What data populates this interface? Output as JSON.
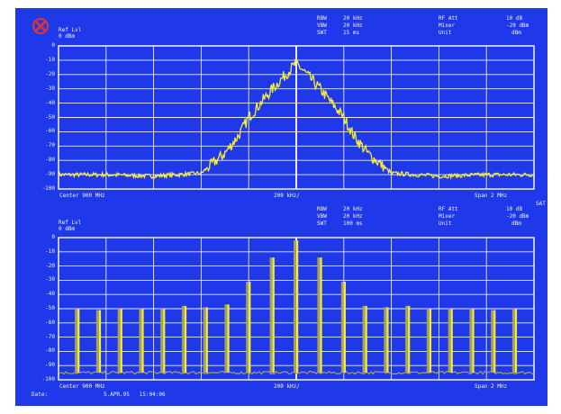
{
  "colors": {
    "background": "#1f38ea",
    "grid": "#ffffff",
    "trace": "#f7ee34",
    "trace_dark": "#a8a060",
    "logo": "#e3352a"
  },
  "icons": {
    "logo": "rohde-schwarz-logo-icon"
  },
  "top": {
    "ref_lvl_label": "Ref Lvl",
    "ref_lvl_value": "0 dBm",
    "rbw_label": "RBW",
    "rbw_value": "20 kHz",
    "vbw_label": "VBW",
    "vbw_value": "20 kHz",
    "swt_label": "SWT",
    "swt_value": "15 ms",
    "rf_att_label": "RF Att",
    "rf_att_value": "10 dB",
    "mixer_label": "Mixer",
    "mixer_value": "-20 dBm",
    "unit_label": "Unit",
    "unit_value": "dBm",
    "center": "Center 900 MHz",
    "div": "200 kHz/",
    "span": "Span 2 MHz",
    "sat": "SAT"
  },
  "bottom": {
    "ref_lvl_label": "Ref Lvl",
    "ref_lvl_value": "0 dBm",
    "rbw_label": "RBW",
    "rbw_value": "20 kHz",
    "vbw_label": "VBW",
    "vbw_value": "20 kHz",
    "swt_label": "SWT",
    "swt_value": "100 ms",
    "rf_att_label": "RF Att",
    "rf_att_value": "10 dB",
    "mixer_label": "Mixer",
    "mixer_value": "-20 dBm",
    "unit_label": "Unit",
    "unit_value": "dBm",
    "center": "Center 900 MHz",
    "div": "200 kHz/",
    "span": "Span 2 MHz"
  },
  "footer": {
    "date_label": "Date:",
    "date_value": "5.APR.95   15:04:06"
  },
  "y_ticks": [
    "0",
    "-10",
    "-20",
    "-30",
    "-40",
    "-50",
    "-60",
    "-70",
    "-80",
    "-90",
    "-100"
  ],
  "chart_data": [
    {
      "type": "line",
      "x_unit": "MHz",
      "y_unit": "dBm",
      "xlim": [
        899,
        901
      ],
      "ylim": [
        -100,
        0
      ],
      "series": [
        {
          "x": [
            899.0,
            899.2,
            899.4,
            899.6,
            899.7,
            899.76,
            899.8,
            899.9,
            900.0,
            900.1,
            900.2,
            900.24,
            900.3,
            900.4,
            900.6,
            900.8,
            901.0
          ],
          "values": [
            -90,
            -90,
            -91,
            -89,
            -75,
            -62,
            -50,
            -30,
            -12,
            -30,
            -50,
            -62,
            -75,
            -89,
            -91,
            -90,
            -90
          ]
        }
      ]
    },
    {
      "type": "bar",
      "x_unit": "MHz",
      "y_unit": "dBm",
      "xlim": [
        899,
        901
      ],
      "ylim": [
        -100,
        0
      ],
      "x": [
        899.08,
        899.17,
        899.26,
        899.35,
        899.44,
        899.53,
        899.62,
        899.71,
        899.8,
        899.9,
        900.0,
        900.1,
        900.2,
        900.29,
        900.38,
        900.47,
        900.56,
        900.65,
        900.74,
        900.83,
        900.92
      ],
      "values": [
        -50,
        -51,
        -50,
        -50,
        -50,
        -48,
        -49,
        -47,
        -31,
        -14,
        -2,
        -14,
        -31,
        -48,
        -49,
        -48,
        -50,
        -50,
        -50,
        -51,
        -50
      ],
      "floor": -95
    }
  ]
}
